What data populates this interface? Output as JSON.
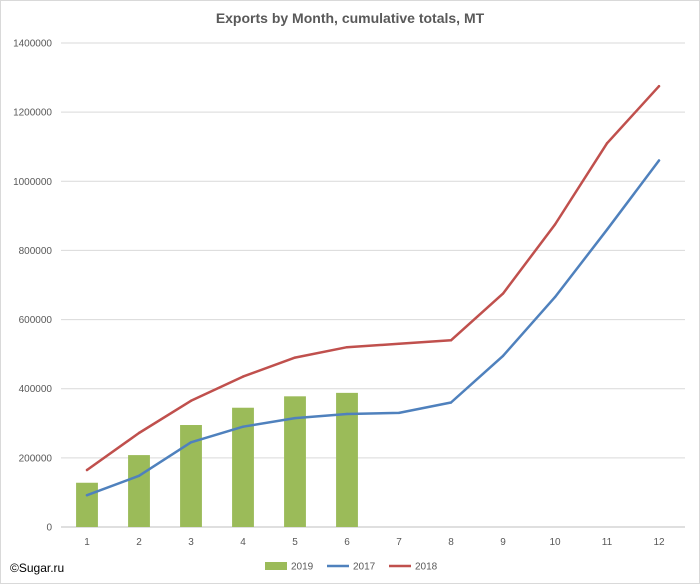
{
  "chart_data": {
    "type": "bar",
    "title": "Exports by Month, cumulative totals, MT",
    "xlabel": "",
    "ylabel": "",
    "categories": [
      "1",
      "2",
      "3",
      "4",
      "5",
      "6",
      "7",
      "8",
      "9",
      "10",
      "11",
      "12"
    ],
    "ylim": [
      0,
      1400000
    ],
    "yticks": [
      "0",
      "200000",
      "400000",
      "600000",
      "800000",
      "1000000",
      "1200000",
      "1400000"
    ],
    "grid": true,
    "legend": "bottom",
    "series": [
      {
        "name": "2019",
        "kind": "bar",
        "color": "#9bbb59",
        "values": [
          128000,
          208000,
          295000,
          345000,
          378000,
          388000,
          null,
          null,
          null,
          null,
          null,
          null
        ]
      },
      {
        "name": "2017",
        "kind": "line",
        "color": "#4f81bd",
        "values": [
          92000,
          148000,
          245000,
          290000,
          315000,
          327000,
          330000,
          360000,
          495000,
          665000,
          860000,
          1060000
        ]
      },
      {
        "name": "2018",
        "kind": "line",
        "color": "#c0504d",
        "values": [
          165000,
          272000,
          365000,
          435000,
          490000,
          520000,
          530000,
          540000,
          675000,
          875000,
          1110000,
          1275000
        ]
      }
    ]
  },
  "footer": {
    "copyright": "©Sugar.ru"
  }
}
